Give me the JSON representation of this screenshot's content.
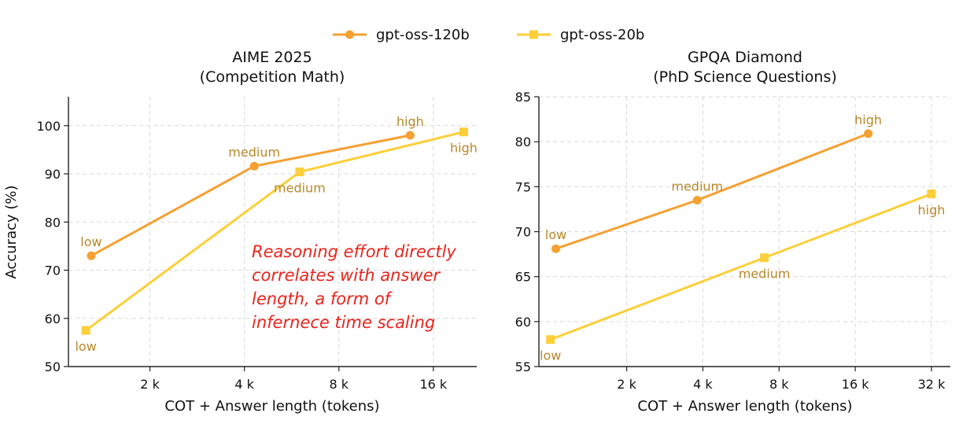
{
  "legend": [
    {
      "name": "gpt-oss-120b",
      "color": "#f5a032",
      "marker": "circle"
    },
    {
      "name": "gpt-oss-20b",
      "color": "#fccf3a",
      "marker": "square"
    }
  ],
  "label_color": "#b8882a",
  "chart_data": [
    {
      "type": "line",
      "title": "AIME 2025",
      "subtitle": "(Competition Math)",
      "xlabel": "COT + Answer length (tokens)",
      "ylabel": "Accuracy (%)",
      "xscale": "log2",
      "xlim": [
        1100,
        22000
      ],
      "ylim": [
        50,
        106
      ],
      "xticks": [
        2000,
        4000,
        8000,
        16000
      ],
      "xtick_labels": [
        "2 k",
        "4 k",
        "8 k",
        "16 k"
      ],
      "yticks": [
        50,
        60,
        70,
        80,
        90,
        100
      ],
      "ytick_labels": [
        "50",
        "60",
        "70",
        "80",
        "90",
        "100"
      ],
      "grid": true,
      "series": [
        {
          "name": "gpt-oss-120b",
          "x": [
            1300,
            4300,
            13500
          ],
          "values": [
            73,
            91.6,
            98
          ],
          "point_labels": [
            "low",
            "medium",
            "high"
          ],
          "label_side": [
            "above",
            "above",
            "above"
          ]
        },
        {
          "name": "gpt-oss-20b",
          "x": [
            1250,
            6000,
            20000
          ],
          "values": [
            57.5,
            90.4,
            98.7
          ],
          "point_labels": [
            "low",
            "medium",
            "high"
          ],
          "label_side": [
            "below",
            "below",
            "below"
          ]
        }
      ],
      "annotation": [
        "Reasoning effort directly",
        "correlates with answer",
        "length, a form of",
        "infernece time scaling"
      ]
    },
    {
      "type": "line",
      "title": "GPQA Diamond",
      "subtitle": "(PhD Science Questions)",
      "xlabel": "COT + Answer length (tokens)",
      "ylabel": "",
      "xscale": "log2",
      "xlim": [
        900,
        38000
      ],
      "ylim": [
        55,
        85
      ],
      "xticks": [
        2000,
        4000,
        8000,
        16000,
        32000
      ],
      "xtick_labels": [
        "2 k",
        "4 k",
        "8 k",
        "16 k",
        "32 k"
      ],
      "yticks": [
        55,
        60,
        65,
        70,
        75,
        80,
        85
      ],
      "ytick_labels": [
        "55",
        "60",
        "65",
        "70",
        "75",
        "80",
        "85"
      ],
      "grid": true,
      "series": [
        {
          "name": "gpt-oss-120b",
          "x": [
            1050,
            3800,
            18000
          ],
          "values": [
            68.1,
            73.5,
            80.9
          ],
          "point_labels": [
            "low",
            "medium",
            "high"
          ],
          "label_side": [
            "above",
            "above",
            "above"
          ]
        },
        {
          "name": "gpt-oss-20b",
          "x": [
            1000,
            7000,
            32000
          ],
          "values": [
            58,
            67.1,
            74.2
          ],
          "point_labels": [
            "low",
            "medium",
            "high"
          ],
          "label_side": [
            "below",
            "below",
            "below"
          ]
        }
      ]
    }
  ]
}
